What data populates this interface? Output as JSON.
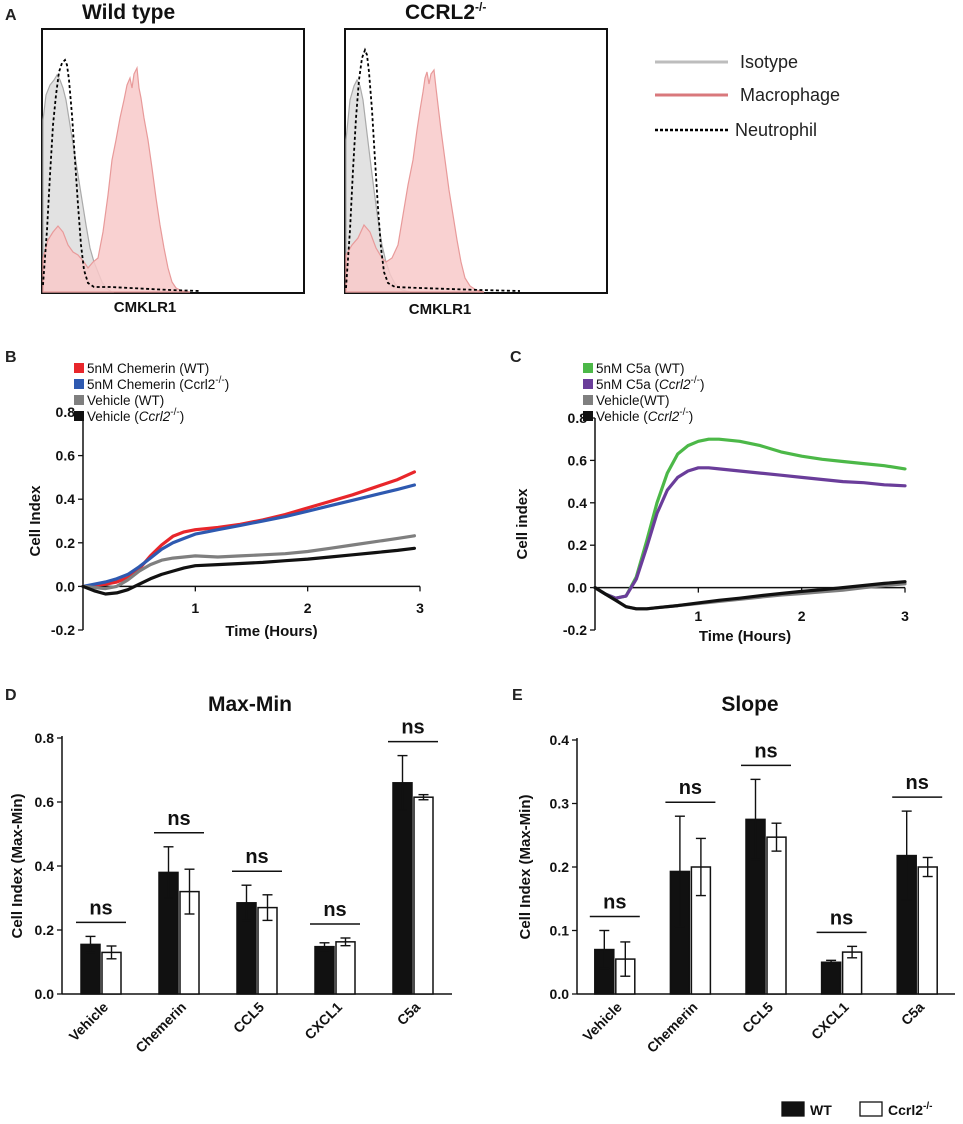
{
  "chart_data": [
    {
      "panel": "A",
      "type": "area",
      "titles": [
        "Wild type",
        "CCRL2"
      ],
      "title_superscript": "-/-",
      "xlabel": "CMKLR1",
      "legend": [
        {
          "label": "Isotype",
          "color": "#bdbdbd",
          "style": "solid"
        },
        {
          "label": "Macrophage",
          "color": "#d9787c",
          "style": "solid"
        },
        {
          "label": "Neutrophil",
          "color": "#000000",
          "style": "dotted"
        }
      ]
    },
    {
      "panel": "B",
      "type": "line",
      "xlabel": "Time (Hours)",
      "ylabel": "Cell Index",
      "xlim": [
        0,
        3
      ],
      "ylim": [
        -0.2,
        0.8
      ],
      "xticks": [
        "1",
        "2",
        "3"
      ],
      "yticks": [
        "0.8",
        "0.6",
        "0.4",
        "0.2",
        "0.0",
        "-0.2"
      ],
      "legend": [
        {
          "label": "5nM Chemerin (WT)",
          "color": "#e8262b"
        },
        {
          "label": "5nM Chemerin (Ccrl2",
          "sup": "-/-",
          "tail": ")",
          "color": "#2e59b0"
        },
        {
          "label": "Vehicle (WT)",
          "color": "#7f7f7f"
        },
        {
          "label": "Vehicle (",
          "italic": "Ccrl2",
          "sup": "-/-",
          "tail": ")",
          "color": "#111111"
        }
      ],
      "series": [
        {
          "name": "5nM Chemerin (WT)",
          "color": "#e8262b",
          "x": [
            0,
            0.1,
            0.2,
            0.3,
            0.4,
            0.5,
            0.6,
            0.7,
            0.8,
            0.9,
            1.0,
            1.1,
            1.2,
            1.4,
            1.6,
            1.8,
            2.0,
            2.2,
            2.4,
            2.6,
            2.8,
            2.95
          ],
          "y": [
            0,
            0.005,
            0.01,
            0.02,
            0.04,
            0.08,
            0.14,
            0.19,
            0.23,
            0.25,
            0.26,
            0.265,
            0.27,
            0.285,
            0.305,
            0.33,
            0.36,
            0.39,
            0.42,
            0.455,
            0.49,
            0.525
          ]
        },
        {
          "name": "5nM Chemerin (Ccrl2-/-)",
          "color": "#2e59b0",
          "x": [
            0,
            0.1,
            0.2,
            0.3,
            0.4,
            0.5,
            0.6,
            0.7,
            0.8,
            0.9,
            1.0,
            1.1,
            1.2,
            1.4,
            1.6,
            1.8,
            2.0,
            2.2,
            2.4,
            2.6,
            2.8,
            2.95
          ],
          "y": [
            0,
            0.01,
            0.02,
            0.035,
            0.055,
            0.09,
            0.13,
            0.17,
            0.2,
            0.22,
            0.24,
            0.25,
            0.26,
            0.28,
            0.3,
            0.32,
            0.345,
            0.37,
            0.395,
            0.42,
            0.445,
            0.465
          ]
        },
        {
          "name": "Vehicle (WT)",
          "color": "#7f7f7f",
          "x": [
            0,
            0.1,
            0.2,
            0.3,
            0.4,
            0.5,
            0.6,
            0.7,
            0.8,
            0.9,
            1.0,
            1.2,
            1.4,
            1.6,
            1.8,
            2.0,
            2.2,
            2.4,
            2.6,
            2.8,
            2.95
          ],
          "y": [
            0,
            -0.005,
            -0.01,
            0.0,
            0.03,
            0.07,
            0.1,
            0.12,
            0.13,
            0.135,
            0.14,
            0.135,
            0.14,
            0.145,
            0.15,
            0.16,
            0.175,
            0.19,
            0.205,
            0.22,
            0.232
          ]
        },
        {
          "name": "Vehicle (Ccrl2-/-)",
          "color": "#111111",
          "x": [
            0,
            0.1,
            0.2,
            0.3,
            0.4,
            0.5,
            0.6,
            0.7,
            0.8,
            0.9,
            1.0,
            1.2,
            1.4,
            1.6,
            1.8,
            2.0,
            2.2,
            2.4,
            2.6,
            2.8,
            2.95
          ],
          "y": [
            0,
            -0.02,
            -0.035,
            -0.03,
            -0.015,
            0.01,
            0.035,
            0.055,
            0.07,
            0.085,
            0.095,
            0.1,
            0.105,
            0.11,
            0.118,
            0.125,
            0.135,
            0.145,
            0.155,
            0.165,
            0.175
          ]
        }
      ]
    },
    {
      "panel": "C",
      "type": "line",
      "xlabel": "Time (Hours)",
      "ylabel": "Cell index",
      "xlim": [
        0,
        3
      ],
      "ylim": [
        -0.2,
        0.8
      ],
      "xticks": [
        "1",
        "2",
        "3"
      ],
      "yticks": [
        "0.8",
        "0.6",
        "0.4",
        "0.2",
        "0.0",
        "-0.2"
      ],
      "legend": [
        {
          "label": "5nM C5a (WT)",
          "color": "#4cb848"
        },
        {
          "label": "5nM C5a (",
          "italic": "Ccrl2",
          "sup": "-/-",
          "tail": ")",
          "color": "#6a3d9a"
        },
        {
          "label": "Vehicle(WT)",
          "color": "#7f7f7f"
        },
        {
          "label": "Vehicle (",
          "italic": "Ccrl2",
          "sup": "-/-",
          "tail": ")",
          "color": "#111111"
        }
      ],
      "series": [
        {
          "name": "5nM C5a (WT)",
          "color": "#4cb848",
          "x": [
            0,
            0.1,
            0.2,
            0.3,
            0.4,
            0.5,
            0.6,
            0.7,
            0.8,
            0.9,
            1.0,
            1.1,
            1.2,
            1.4,
            1.6,
            1.8,
            2.0,
            2.2,
            2.4,
            2.6,
            2.8,
            3.0
          ],
          "y": [
            0,
            -0.03,
            -0.05,
            -0.04,
            0.05,
            0.22,
            0.4,
            0.54,
            0.63,
            0.67,
            0.69,
            0.7,
            0.7,
            0.69,
            0.67,
            0.64,
            0.62,
            0.605,
            0.595,
            0.585,
            0.575,
            0.56
          ]
        },
        {
          "name": "5nM C5a (Ccrl2-/-)",
          "color": "#6a3d9a",
          "x": [
            0,
            0.1,
            0.2,
            0.3,
            0.4,
            0.5,
            0.6,
            0.7,
            0.8,
            0.9,
            1.0,
            1.1,
            1.2,
            1.4,
            1.6,
            1.8,
            2.0,
            2.2,
            2.4,
            2.6,
            2.8,
            3.0
          ],
          "y": [
            0,
            -0.03,
            -0.05,
            -0.04,
            0.04,
            0.19,
            0.35,
            0.46,
            0.52,
            0.55,
            0.565,
            0.565,
            0.56,
            0.55,
            0.54,
            0.53,
            0.52,
            0.51,
            0.5,
            0.495,
            0.485,
            0.48
          ]
        },
        {
          "name": "Vehicle(WT)",
          "color": "#7f7f7f",
          "x": [
            0,
            0.1,
            0.2,
            0.3,
            0.4,
            0.5,
            0.6,
            0.8,
            1.0,
            1.2,
            1.4,
            1.6,
            1.8,
            2.0,
            2.2,
            2.4,
            2.6,
            2.8,
            3.0
          ],
          "y": [
            0,
            -0.03,
            -0.06,
            -0.09,
            -0.1,
            -0.1,
            -0.095,
            -0.085,
            -0.075,
            -0.065,
            -0.055,
            -0.045,
            -0.035,
            -0.028,
            -0.02,
            -0.012,
            0.0,
            0.01,
            0.018
          ]
        },
        {
          "name": "Vehicle (Ccrl2-/-)",
          "color": "#111111",
          "x": [
            0,
            0.1,
            0.2,
            0.3,
            0.4,
            0.5,
            0.6,
            0.8,
            1.0,
            1.2,
            1.4,
            1.6,
            1.8,
            2.0,
            2.2,
            2.4,
            2.6,
            2.8,
            3.0
          ],
          "y": [
            0,
            -0.03,
            -0.06,
            -0.09,
            -0.1,
            -0.1,
            -0.095,
            -0.085,
            -0.072,
            -0.06,
            -0.05,
            -0.038,
            -0.028,
            -0.018,
            -0.01,
            0.0,
            0.01,
            0.02,
            0.028
          ]
        }
      ]
    },
    {
      "panel": "D",
      "type": "bar",
      "title": "Max-Min",
      "ylabel": "Cell Index  (Max-Min)",
      "ylim": [
        0,
        0.8
      ],
      "yticks": [
        "0.8",
        "0.6",
        "0.4",
        "0.2",
        "0.0"
      ],
      "categories": [
        "Vehicle",
        "Chemerin",
        "CCL5",
        "CXCL1",
        "C5a"
      ],
      "series": [
        {
          "name": "WT",
          "values": [
            0.155,
            0.38,
            0.285,
            0.148,
            0.66
          ],
          "errors": [
            0.025,
            0.08,
            0.055,
            0.012,
            0.085
          ]
        },
        {
          "name": "Ccrl2-/-",
          "values": [
            0.13,
            0.32,
            0.27,
            0.163,
            0.615
          ],
          "errors": [
            0.02,
            0.07,
            0.04,
            0.012,
            0.008
          ]
        }
      ],
      "annotations": [
        "ns",
        "ns",
        "ns",
        "ns",
        "ns"
      ]
    },
    {
      "panel": "E",
      "type": "bar",
      "title": "Slope",
      "ylabel": "Cell Index (Max-Min)",
      "ylim": [
        0,
        0.4
      ],
      "yticks": [
        "0.4",
        "0.3",
        "0.2",
        "0.1",
        "0.0"
      ],
      "categories": [
        "Vehicle",
        "Chemerin",
        "CCL5",
        "CXCL1",
        "C5a"
      ],
      "series": [
        {
          "name": "WT",
          "values": [
            0.07,
            0.193,
            0.275,
            0.05,
            0.218
          ],
          "errors": [
            0.03,
            0.087,
            0.063,
            0.003,
            0.07
          ]
        },
        {
          "name": "Ccrl2-/-",
          "values": [
            0.055,
            0.2,
            0.247,
            0.066,
            0.2
          ],
          "errors": [
            0.027,
            0.045,
            0.022,
            0.009,
            0.015
          ]
        }
      ],
      "annotations": [
        "ns",
        "ns",
        "ns",
        "ns",
        "ns"
      ],
      "legend": [
        {
          "label": "WT",
          "fill": "#111111"
        },
        {
          "label": "Ccrl2",
          "sup": "-/-",
          "fill": "#ffffff"
        }
      ]
    }
  ]
}
